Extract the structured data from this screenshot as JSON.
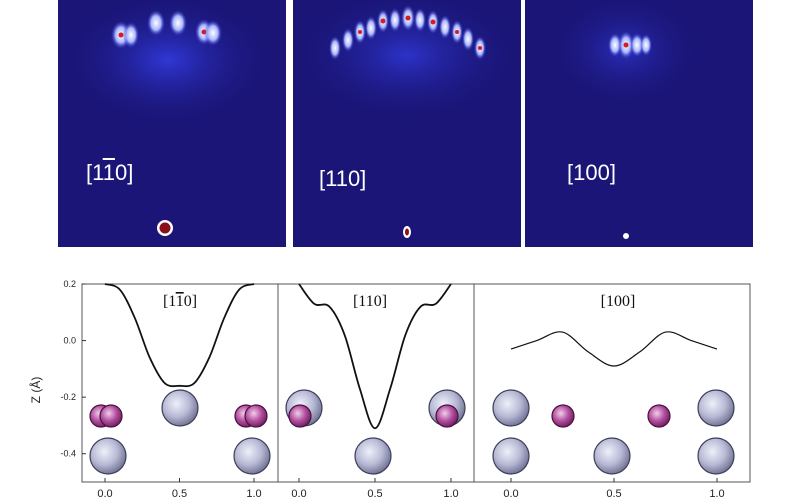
{
  "diffraction_panels": [
    {
      "label_pre": "[1",
      "label_bar": "1",
      "label_post": "0]"
    },
    {
      "label_pre": "[110]",
      "label_bar": "",
      "label_post": ""
    },
    {
      "label_pre": "[100]",
      "label_bar": "",
      "label_post": ""
    }
  ],
  "colors": {
    "diffraction_bg": "#1a1577",
    "spot": "#ffffff",
    "spot_core": "#d81b1b",
    "large_atom": "#b9bbd6",
    "small_atom": "#b24d9e"
  },
  "chart_data": {
    "type": "line",
    "ylabel": "Z (Å)",
    "yticks": [
      "0.2",
      "0.0",
      "-0.2",
      "-0.4"
    ],
    "ylim": [
      -0.5,
      0.2
    ],
    "panels": [
      {
        "title_pre": "[1",
        "title_bar": "1",
        "title_post": "0]",
        "xticks": [
          "0.0",
          "0.5",
          "1.0"
        ],
        "xlim": [
          0,
          1
        ],
        "x": [
          0.0,
          0.1,
          0.2,
          0.3,
          0.4,
          0.5,
          0.6,
          0.7,
          0.8,
          0.9,
          1.0
        ],
        "y": [
          0.2,
          0.18,
          0.08,
          -0.06,
          -0.15,
          -0.16,
          -0.15,
          -0.06,
          0.08,
          0.18,
          0.2
        ]
      },
      {
        "title_pre": "[110]",
        "title_bar": "",
        "title_post": "",
        "xticks": [
          "0.0",
          "0.5",
          "1.0"
        ],
        "xlim": [
          0,
          1
        ],
        "x": [
          0.0,
          0.1,
          0.2,
          0.3,
          0.4,
          0.5,
          0.6,
          0.7,
          0.8,
          0.9,
          1.0
        ],
        "y": [
          0.2,
          0.13,
          0.12,
          0.02,
          -0.17,
          -0.31,
          -0.17,
          0.02,
          0.12,
          0.13,
          0.2
        ]
      },
      {
        "title_pre": "[100]",
        "title_bar": "",
        "title_post": "",
        "xticks": [
          "0.0",
          "0.5",
          "1.0"
        ],
        "xlim": [
          0,
          1
        ],
        "x": [
          0.0,
          0.125,
          0.25,
          0.375,
          0.5,
          0.625,
          0.75,
          0.875,
          1.0
        ],
        "y": [
          -0.03,
          0.0,
          0.03,
          -0.04,
          -0.09,
          -0.04,
          0.03,
          0.0,
          -0.03
        ]
      }
    ]
  }
}
